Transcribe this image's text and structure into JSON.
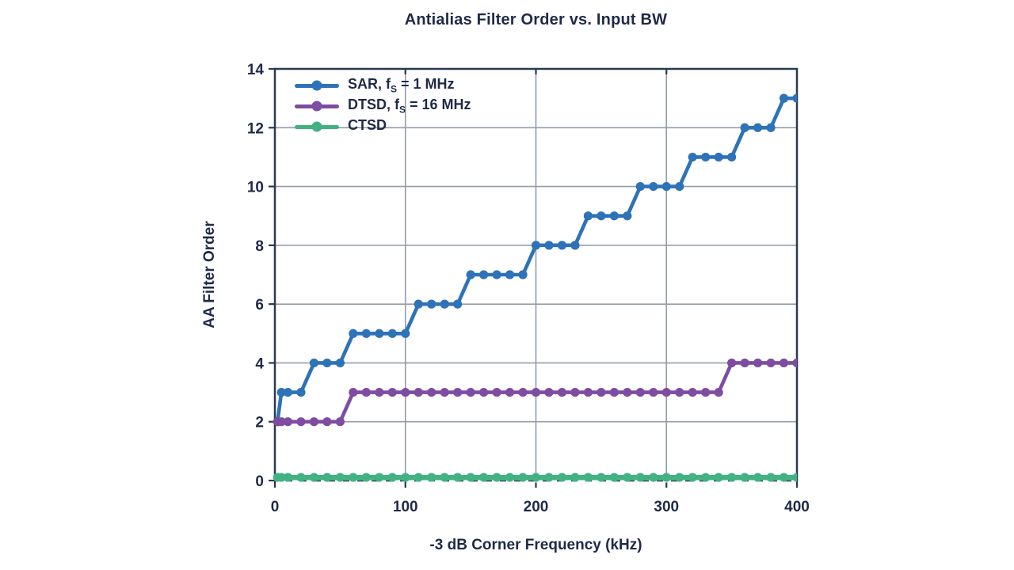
{
  "colors": {
    "background": "#ffffff",
    "text_navy": "#1f2a47",
    "frame": "#2b3852",
    "grid": "#939ca9",
    "sar_blue": "#2e72b8",
    "dtsd_purple": "#7e4ca0",
    "ctsd_green": "#42b183"
  },
  "chart_data": {
    "type": "line",
    "title": "Antialias Filter Order vs. Input BW",
    "xlabel": "-3 dB Corner Frequency (kHz)",
    "ylabel": "AA Filter Order",
    "xlim": [
      0,
      400
    ],
    "ylim": [
      0,
      14
    ],
    "xticks": [
      0,
      100,
      200,
      300,
      400
    ],
    "yticks": [
      0,
      2,
      4,
      6,
      8,
      10,
      12,
      14
    ],
    "xtick_labels": [
      "0",
      "100",
      "200",
      "300",
      "400"
    ],
    "ytick_labels": [
      "0",
      "2",
      "4",
      "6",
      "8",
      "10",
      "12",
      "14"
    ],
    "grid": true,
    "legend_position": "top-left-inside",
    "series": [
      {
        "name": "SAR, fS = 1 MHz",
        "color": "#2e72b8",
        "legend": {
          "pre": "SAR, f",
          "sub": "S",
          "post": " = 1 MHz"
        },
        "x": [
          2,
          5,
          10,
          20,
          30,
          40,
          50,
          60,
          70,
          80,
          90,
          100,
          110,
          120,
          130,
          140,
          150,
          160,
          170,
          180,
          190,
          200,
          210,
          220,
          230,
          240,
          250,
          260,
          270,
          280,
          290,
          300,
          310,
          320,
          330,
          340,
          350,
          360,
          370,
          380,
          390,
          400
        ],
        "y": [
          2,
          3,
          3,
          3,
          4,
          4,
          4,
          5,
          5,
          5,
          5,
          5,
          6,
          6,
          6,
          6,
          7,
          7,
          7,
          7,
          7,
          8,
          8,
          8,
          8,
          9,
          9,
          9,
          9,
          10,
          10,
          10,
          10,
          11,
          11,
          11,
          11,
          12,
          12,
          12,
          13,
          13
        ]
      },
      {
        "name": "DTSD, fS = 16 MHz",
        "color": "#7e4ca0",
        "legend": {
          "pre": "DTSD, f",
          "sub": "S",
          "post": " = 16 MHz"
        },
        "x": [
          2,
          5,
          10,
          20,
          30,
          40,
          50,
          60,
          70,
          80,
          90,
          100,
          110,
          120,
          130,
          140,
          150,
          160,
          170,
          180,
          190,
          200,
          210,
          220,
          230,
          240,
          250,
          260,
          270,
          280,
          290,
          300,
          310,
          320,
          330,
          340,
          350,
          360,
          370,
          380,
          390,
          400
        ],
        "y": [
          2,
          2,
          2,
          2,
          2,
          2,
          2,
          3,
          3,
          3,
          3,
          3,
          3,
          3,
          3,
          3,
          3,
          3,
          3,
          3,
          3,
          3,
          3,
          3,
          3,
          3,
          3,
          3,
          3,
          3,
          3,
          3,
          3,
          3,
          3,
          3,
          4,
          4,
          4,
          4,
          4,
          4
        ]
      },
      {
        "name": "CTSD",
        "color": "#42b183",
        "legend": {
          "pre": "CTSD",
          "sub": "",
          "post": ""
        },
        "x": [
          2,
          5,
          10,
          20,
          30,
          40,
          50,
          60,
          70,
          80,
          90,
          100,
          110,
          120,
          130,
          140,
          150,
          160,
          170,
          180,
          190,
          200,
          210,
          220,
          230,
          240,
          250,
          260,
          270,
          280,
          290,
          300,
          310,
          320,
          330,
          340,
          350,
          360,
          370,
          380,
          390,
          400
        ],
        "y": [
          0,
          0,
          0,
          0,
          0,
          0,
          0,
          0,
          0,
          0,
          0,
          0,
          0,
          0,
          0,
          0,
          0,
          0,
          0,
          0,
          0,
          0,
          0,
          0,
          0,
          0,
          0,
          0,
          0,
          0,
          0,
          0,
          0,
          0,
          0,
          0,
          0,
          0,
          0,
          0,
          0,
          0
        ]
      }
    ]
  }
}
